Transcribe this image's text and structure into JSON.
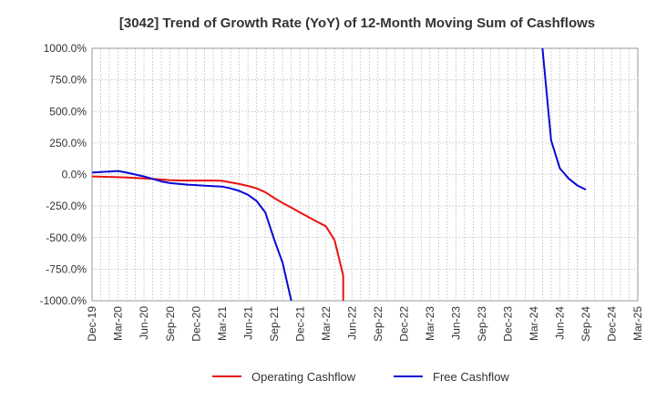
{
  "chart_data": {
    "type": "line",
    "title": "[3042]  Trend of Growth Rate (YoY) of 12-Month Moving Sum of Cashflows",
    "xlabel": "",
    "ylabel": "",
    "ylim": [
      -1000,
      1000
    ],
    "y_ticks": [
      1000,
      750,
      500,
      250,
      0,
      -250,
      -500,
      -750,
      -1000
    ],
    "y_tick_labels": [
      "1000.0%",
      "750.0%",
      "500.0%",
      "250.0%",
      "0.0%",
      "-250.0%",
      "-500.0%",
      "-750.0%",
      "-1000.0%"
    ],
    "x_ticks": [
      "Dec-19",
      "Mar-20",
      "Jun-20",
      "Sep-20",
      "Dec-20",
      "Mar-21",
      "Jun-21",
      "Sep-21",
      "Dec-21",
      "Mar-22",
      "Jun-22",
      "Sep-22",
      "Dec-22",
      "Mar-23",
      "Jun-23",
      "Sep-23",
      "Dec-23",
      "Mar-24",
      "Jun-24",
      "Sep-24",
      "Dec-24",
      "Mar-25"
    ],
    "grid": true,
    "legend_position": "bottom",
    "series": [
      {
        "name": "Operating Cashflow",
        "color": "#e8110f",
        "points": [
          [
            "Dec-19",
            -15
          ],
          [
            "Jan-20",
            -17
          ],
          [
            "Feb-20",
            -19
          ],
          [
            "Mar-20",
            -21
          ],
          [
            "Apr-20",
            -24
          ],
          [
            "May-20",
            -27
          ],
          [
            "Jun-20",
            -30
          ],
          [
            "Jul-20",
            -35
          ],
          [
            "Aug-20",
            -40
          ],
          [
            "Sep-20",
            -45
          ],
          [
            "Oct-20",
            -47
          ],
          [
            "Nov-20",
            -48
          ],
          [
            "Dec-20",
            -48
          ],
          [
            "Jan-21",
            -48
          ],
          [
            "Feb-21",
            -48
          ],
          [
            "Mar-21",
            -50
          ],
          [
            "Apr-21",
            -62
          ],
          [
            "May-21",
            -75
          ],
          [
            "Jun-21",
            -90
          ],
          [
            "Jul-21",
            -110
          ],
          [
            "Aug-21",
            -140
          ],
          [
            "Sep-21",
            -185
          ],
          [
            "Oct-21",
            -225
          ],
          [
            "Nov-21",
            -262
          ],
          [
            "Dec-21",
            -300
          ],
          [
            "Jan-22",
            -338
          ],
          [
            "Feb-22",
            -375
          ],
          [
            "Mar-22",
            -410
          ],
          [
            "Apr-22",
            -520
          ],
          [
            "May-22",
            -800
          ],
          [
            "May-22",
            -1000
          ]
        ]
      },
      {
        "name": "Free Cashflow",
        "color": "#0a0ad4",
        "points": [
          [
            "Dec-19",
            15
          ],
          [
            "Jan-20",
            20
          ],
          [
            "Feb-20",
            24
          ],
          [
            "Mar-20",
            28
          ],
          [
            "Apr-20",
            15
          ],
          [
            "May-20",
            0
          ],
          [
            "Jun-20",
            -15
          ],
          [
            "Jul-20",
            -35
          ],
          [
            "Aug-20",
            -55
          ],
          [
            "Sep-20",
            -68
          ],
          [
            "Oct-20",
            -74
          ],
          [
            "Nov-20",
            -80
          ],
          [
            "Dec-20",
            -84
          ],
          [
            "Jan-21",
            -88
          ],
          [
            "Feb-21",
            -92
          ],
          [
            "Mar-21",
            -95
          ],
          [
            "Apr-21",
            -110
          ],
          [
            "May-21",
            -130
          ],
          [
            "Jun-21",
            -160
          ],
          [
            "Jul-21",
            -210
          ],
          [
            "Aug-21",
            -300
          ],
          [
            "Sep-21",
            -510
          ],
          [
            "Oct-21",
            -700
          ],
          [
            "Nov-21",
            -1000
          ],
          [
            "Apr-24",
            1000
          ],
          [
            "May-24",
            270
          ],
          [
            "Jun-24",
            50
          ],
          [
            "Jul-24",
            -30
          ],
          [
            "Aug-24",
            -85
          ],
          [
            "Sep-24",
            -120
          ]
        ]
      }
    ]
  }
}
